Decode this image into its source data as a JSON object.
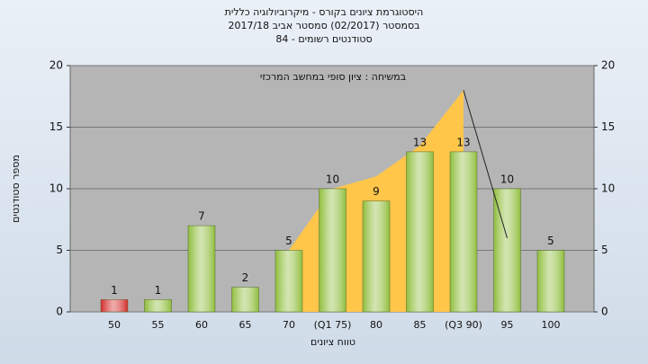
{
  "chart_data": {
    "type": "bar",
    "title": [
      "היסטוגרמת ציונים בקורס - מיקרוביולוגיה כללית",
      "בסמסטר  (02/2017)  סמסטר אביב 2017/18",
      "סטודנטים רשומים - 84"
    ],
    "annotation": "במשיחה : ציון סופי במחשב המרכזי",
    "x_label": "טווח ציונים",
    "y_label": "מספר סטודנטים",
    "categories": [
      "50",
      "55",
      "60",
      "65",
      "70",
      "(Q1 75)",
      "80",
      "85",
      "(Q3 90)",
      "95",
      "100"
    ],
    "values": [
      1,
      1,
      7,
      2,
      5,
      10,
      9,
      13,
      13,
      10,
      5
    ],
    "colors": [
      "#d42a2a",
      "#8fbd3c",
      "#8fbd3c",
      "#8fbd3c",
      "#8fbd3c",
      "#8fbd3c",
      "#8fbd3c",
      "#8fbd3c",
      "#8fbd3c",
      "#8fbd3c",
      "#8fbd3c"
    ],
    "area": {
      "values": [
        null,
        null,
        null,
        null,
        5,
        10,
        11,
        13.5,
        18,
        null,
        null
      ],
      "color": "#ffc64a"
    },
    "line": {
      "values": [
        null,
        null,
        null,
        null,
        null,
        null,
        null,
        null,
        18,
        6,
        null
      ],
      "color": "#222222"
    },
    "ylim": [
      0,
      20
    ],
    "yticks": [
      0,
      5,
      10,
      15,
      20
    ],
    "y2lim": [
      0,
      20
    ],
    "y2ticks": [
      0,
      5,
      10,
      15,
      20
    ],
    "grid": true
  }
}
